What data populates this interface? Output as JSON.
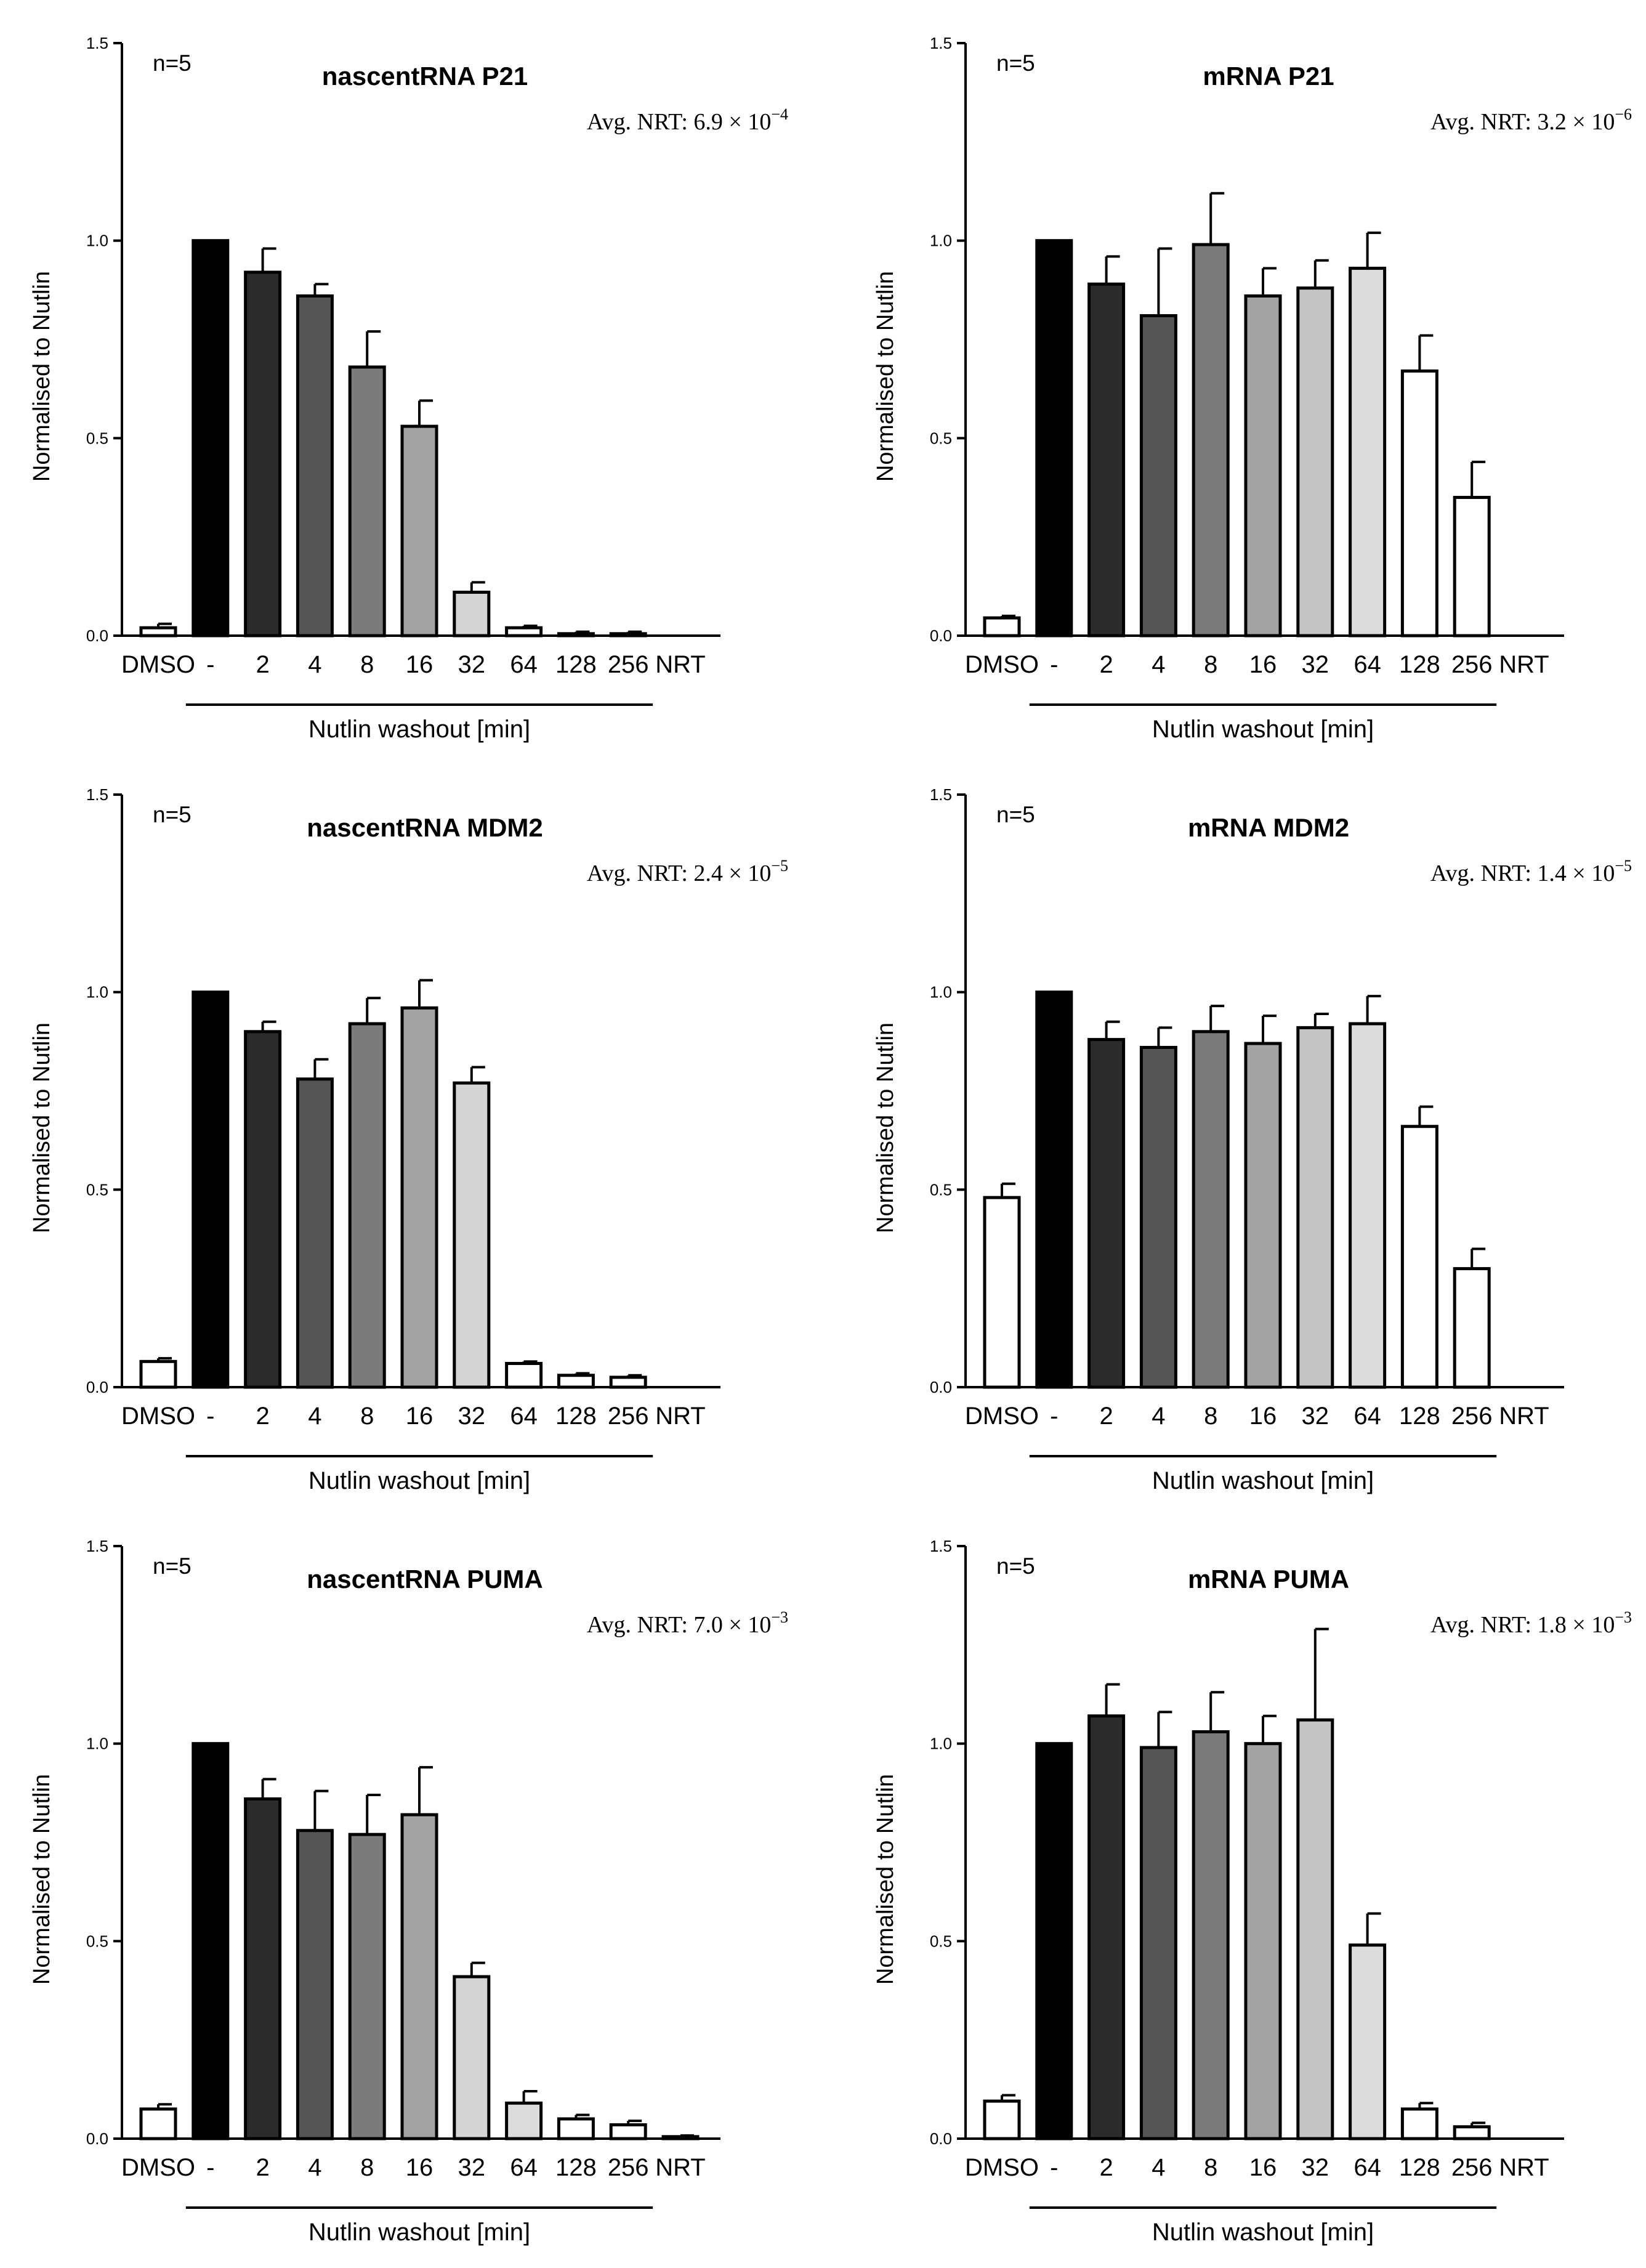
{
  "figure": {
    "charts": [
      {
        "title": "nascentRNA P21",
        "n_label": "n=5",
        "nrt_text": "Avg. NRT: 6.9 × 10",
        "nrt_exp": "−4"
      },
      {
        "title": "mRNA P21",
        "n_label": "n=5",
        "nrt_text": "Avg. NRT: 3.2 × 10",
        "nrt_exp": "−6"
      },
      {
        "title": "nascentRNA MDM2",
        "n_label": "n=5",
        "nrt_text": "Avg. NRT: 2.4 × 10",
        "nrt_exp": "−5"
      },
      {
        "title": "mRNA MDM2",
        "n_label": "n=5",
        "nrt_text": "Avg. NRT: 1.4 × 10",
        "nrt_exp": "−5"
      },
      {
        "title": "nascentRNA PUMA",
        "n_label": "n=5",
        "nrt_text": "Avg. NRT:  7.0 × 10",
        "nrt_exp": "−3"
      },
      {
        "title": "mRNA PUMA",
        "n_label": "n=5",
        "nrt_text": "Avg. NRT: 1.8 × 10",
        "nrt_exp": "−3"
      }
    ]
  },
  "chart_data": [
    {
      "type": "bar",
      "title": "nascentRNA P21",
      "n": "n=5",
      "ylabel": "Normalised to Nutlin",
      "xlabel": "Nutlin washout [min]",
      "ylim": [
        0,
        1.5
      ],
      "yticks": [
        "0.0",
        "0.5",
        "1.0",
        "1.5"
      ],
      "categories": [
        "DMSO",
        "-",
        "2",
        "4",
        "8",
        "16",
        "32",
        "64",
        "128",
        "256",
        "NRT"
      ],
      "values": [
        0.02,
        1.0,
        0.92,
        0.86,
        0.68,
        0.53,
        0.11,
        0.02,
        0.005,
        0.005,
        0.0
      ],
      "errors": [
        0.01,
        0.0,
        0.06,
        0.03,
        0.09,
        0.065,
        0.025,
        0.005,
        0.005,
        0.005,
        0.0
      ],
      "fills": [
        "#ffffff",
        "#000000",
        "#2b2b2b",
        "#555555",
        "#7a7a7a",
        "#a3a3a3",
        "#d4d4d4",
        "#ffffff",
        "#ffffff",
        "#ffffff",
        "#ffffff"
      ]
    },
    {
      "type": "bar",
      "title": "mRNA P21",
      "n": "n=5",
      "ylabel": "Normalised to Nutlin",
      "xlabel": "Nutlin washout [min]",
      "ylim": [
        0,
        1.5
      ],
      "yticks": [
        "0.0",
        "0.5",
        "1.0",
        "1.5"
      ],
      "categories": [
        "DMSO",
        "-",
        "2",
        "4",
        "8",
        "16",
        "32",
        "64",
        "128",
        "256",
        "NRT"
      ],
      "values": [
        0.045,
        1.0,
        0.89,
        0.81,
        0.99,
        0.86,
        0.88,
        0.93,
        0.67,
        0.35,
        0.0
      ],
      "errors": [
        0.005,
        0.0,
        0.07,
        0.17,
        0.13,
        0.07,
        0.07,
        0.09,
        0.09,
        0.09,
        0.0
      ],
      "fills": [
        "#ffffff",
        "#000000",
        "#2b2b2b",
        "#555555",
        "#7a7a7a",
        "#a3a3a3",
        "#c4c4c4",
        "#dcdcdc",
        "#ffffff",
        "#ffffff",
        "#ffffff"
      ]
    },
    {
      "type": "bar",
      "title": "nascentRNA MDM2",
      "n": "n=5",
      "ylabel": "Normalised to Nutlin",
      "xlabel": "Nutlin washout [min]",
      "ylim": [
        0,
        1.5
      ],
      "yticks": [
        "0.0",
        "0.5",
        "1.0",
        "1.5"
      ],
      "categories": [
        "DMSO",
        "-",
        "2",
        "4",
        "8",
        "16",
        "32",
        "64",
        "128",
        "256",
        "NRT"
      ],
      "values": [
        0.065,
        1.0,
        0.9,
        0.78,
        0.92,
        0.96,
        0.77,
        0.06,
        0.03,
        0.025,
        0.0
      ],
      "errors": [
        0.008,
        0.0,
        0.025,
        0.05,
        0.065,
        0.07,
        0.04,
        0.005,
        0.005,
        0.005,
        0.0
      ],
      "fills": [
        "#ffffff",
        "#000000",
        "#2b2b2b",
        "#555555",
        "#7a7a7a",
        "#a3a3a3",
        "#d4d4d4",
        "#ffffff",
        "#ffffff",
        "#ffffff",
        "#ffffff"
      ]
    },
    {
      "type": "bar",
      "title": "mRNA MDM2",
      "n": "n=5",
      "ylabel": "Normalised to Nutlin",
      "xlabel": "Nutlin washout [min]",
      "ylim": [
        0,
        1.5
      ],
      "yticks": [
        "0.0",
        "0.5",
        "1.0",
        "1.5"
      ],
      "categories": [
        "DMSO",
        "-",
        "2",
        "4",
        "8",
        "16",
        "32",
        "64",
        "128",
        "256",
        "NRT"
      ],
      "values": [
        0.48,
        1.0,
        0.88,
        0.86,
        0.9,
        0.87,
        0.91,
        0.92,
        0.66,
        0.3,
        0.0
      ],
      "errors": [
        0.035,
        0.0,
        0.045,
        0.05,
        0.065,
        0.07,
        0.035,
        0.07,
        0.05,
        0.05,
        0.0
      ],
      "fills": [
        "#ffffff",
        "#000000",
        "#2b2b2b",
        "#555555",
        "#7a7a7a",
        "#a3a3a3",
        "#c4c4c4",
        "#dcdcdc",
        "#ffffff",
        "#ffffff",
        "#ffffff"
      ]
    },
    {
      "type": "bar",
      "title": "nascentRNA PUMA",
      "n": "n=5",
      "ylabel": "Normalised to Nutlin",
      "xlabel": "Nutlin washout [min]",
      "ylim": [
        0,
        1.5
      ],
      "yticks": [
        "0.0",
        "0.5",
        "1.0",
        "1.5"
      ],
      "categories": [
        "DMSO",
        "-",
        "2",
        "4",
        "8",
        "16",
        "32",
        "64",
        "128",
        "256",
        "NRT"
      ],
      "values": [
        0.075,
        1.0,
        0.86,
        0.78,
        0.77,
        0.82,
        0.41,
        0.09,
        0.05,
        0.035,
        0.005
      ],
      "errors": [
        0.012,
        0.0,
        0.05,
        0.1,
        0.1,
        0.12,
        0.035,
        0.03,
        0.01,
        0.01,
        0.003
      ],
      "fills": [
        "#ffffff",
        "#000000",
        "#2b2b2b",
        "#555555",
        "#7a7a7a",
        "#a3a3a3",
        "#d4d4d4",
        "#dcdcdc",
        "#ffffff",
        "#ffffff",
        "#ffffff"
      ]
    },
    {
      "type": "bar",
      "title": "mRNA PUMA",
      "n": "n=5",
      "ylabel": "Normalised to Nutlin",
      "xlabel": "Nutlin washout [min]",
      "ylim": [
        0,
        1.5
      ],
      "yticks": [
        "0.0",
        "0.5",
        "1.0",
        "1.5"
      ],
      "categories": [
        "DMSO",
        "-",
        "2",
        "4",
        "8",
        "16",
        "32",
        "64",
        "128",
        "256",
        "NRT"
      ],
      "values": [
        0.095,
        1.0,
        1.07,
        0.99,
        1.03,
        1.0,
        1.06,
        0.49,
        0.075,
        0.03,
        0.0
      ],
      "errors": [
        0.015,
        0.0,
        0.08,
        0.09,
        0.1,
        0.07,
        0.23,
        0.08,
        0.015,
        0.01,
        0.0
      ],
      "fills": [
        "#ffffff",
        "#000000",
        "#2b2b2b",
        "#555555",
        "#7a7a7a",
        "#a3a3a3",
        "#c4c4c4",
        "#dcdcdc",
        "#ffffff",
        "#ffffff",
        "#ffffff"
      ]
    }
  ]
}
